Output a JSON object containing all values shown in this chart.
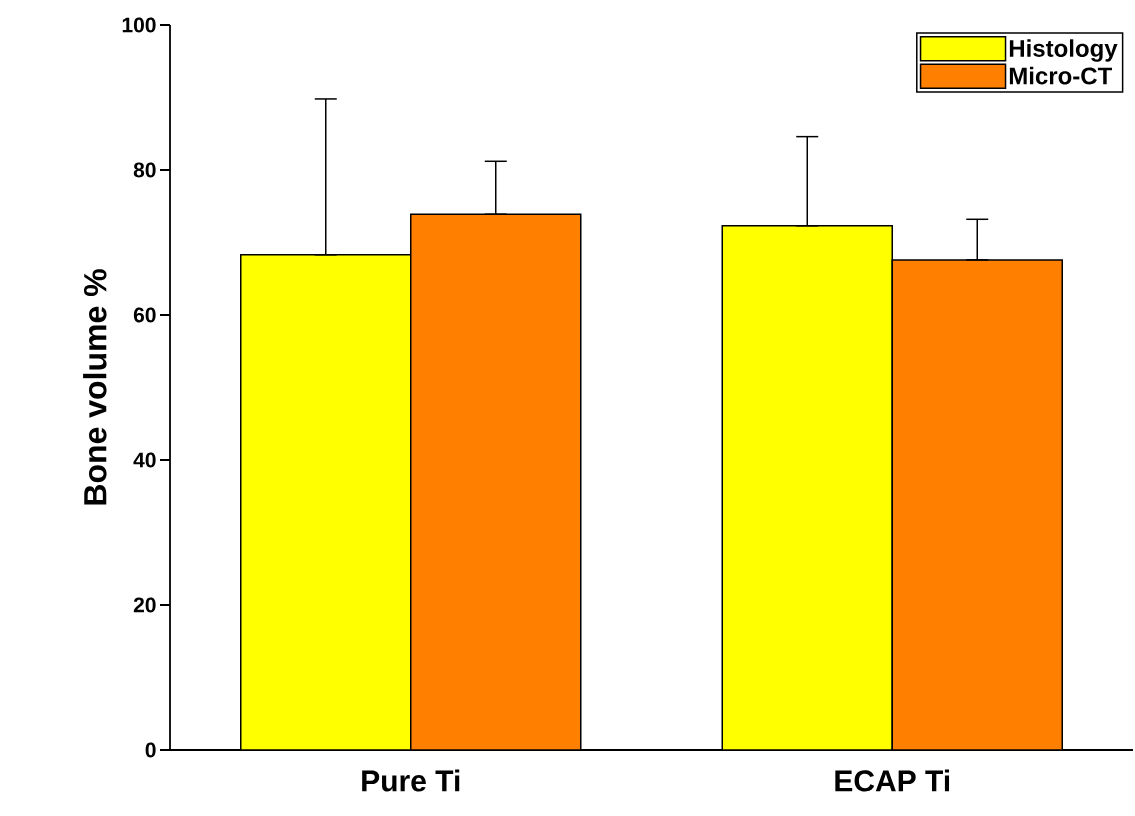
{
  "chart_data": {
    "type": "bar",
    "categories": [
      "Pure Ti",
      "ECAP Ti"
    ],
    "ylabel": "Bone volume %",
    "ylim": [
      0,
      100
    ],
    "yticks": [
      0,
      20,
      40,
      60,
      80,
      100
    ],
    "legend": "top right",
    "series": [
      {
        "name": "Histology",
        "color": "#ffff00",
        "values": [
          68.3,
          72.3
        ],
        "errors": [
          [
            68.3,
            89.8
          ],
          [
            72.3,
            84.6
          ]
        ]
      },
      {
        "name": "Micro-CT",
        "color": "#ff8000",
        "values": [
          73.9,
          67.6
        ],
        "errors": [
          [
            73.9,
            81.2
          ],
          [
            67.6,
            73.2
          ]
        ]
      }
    ]
  }
}
